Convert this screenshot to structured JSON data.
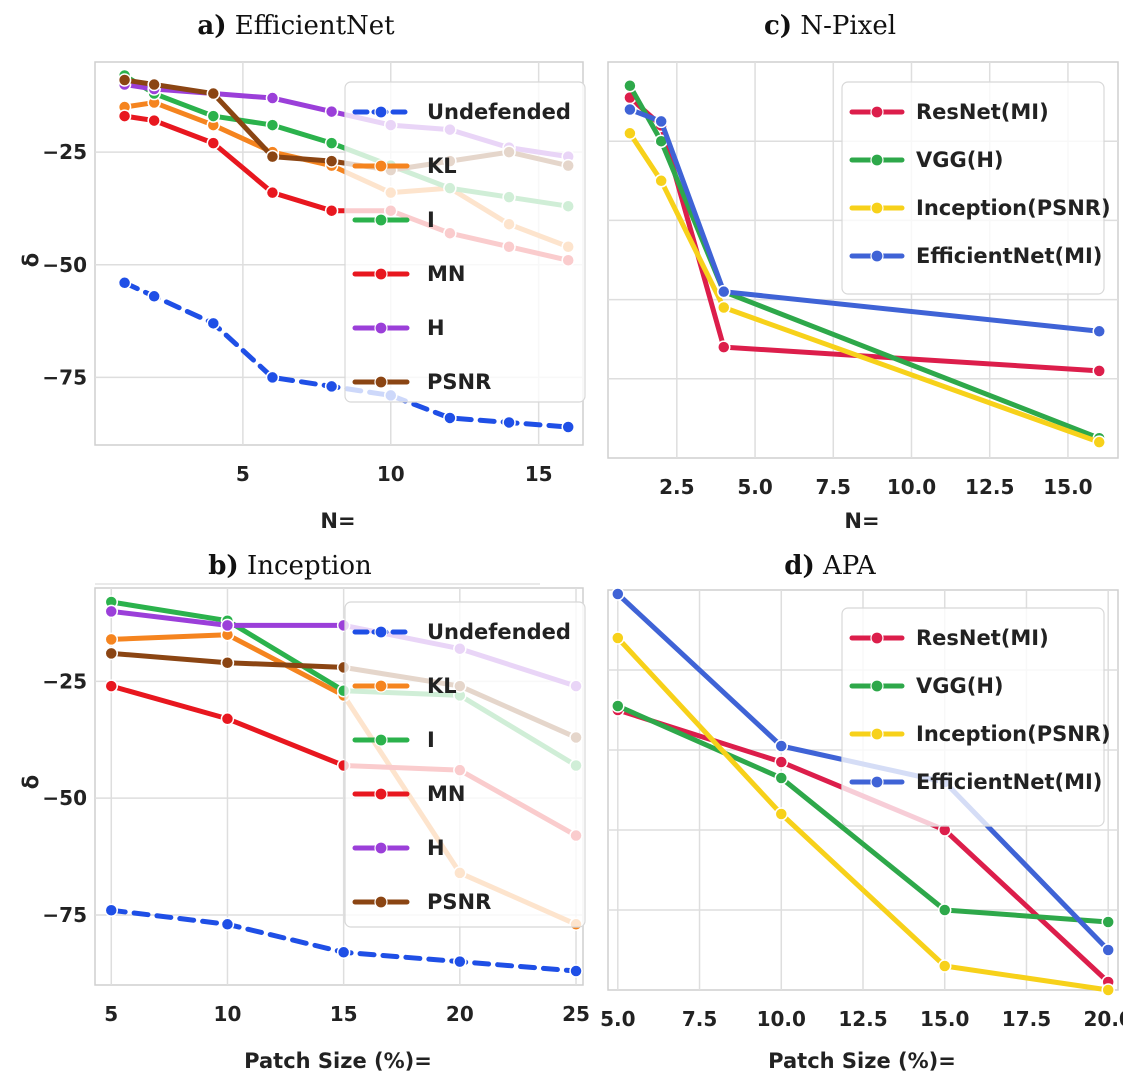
{
  "chart_data": [
    {
      "id": "a",
      "type": "line",
      "title_prefix": "a)",
      "title": "EfficientNet",
      "xlabel": "N=",
      "ylabel": "δ",
      "xlim": [
        0,
        16.5
      ],
      "ylim": [
        -90,
        -5
      ],
      "xticks": [
        5,
        10,
        15
      ],
      "yticks": [
        -25,
        -50,
        -75
      ],
      "grid": true,
      "legend_position": "top-right",
      "series": [
        {
          "name": "Undefended",
          "color": "#1f4fe6",
          "dashed": true,
          "x": [
            1,
            2,
            4,
            6,
            8,
            10,
            12,
            14,
            16
          ],
          "y": [
            -54,
            -57,
            -63,
            -75,
            -77,
            -79,
            -84,
            -85,
            -86
          ]
        },
        {
          "name": "KL",
          "color": "#f5841f",
          "dashed": false,
          "x": [
            1,
            2,
            4,
            6,
            8,
            10,
            12,
            14,
            16
          ],
          "y": [
            -15,
            -14,
            -19,
            -25,
            -28,
            -34,
            -33,
            -41,
            -46
          ]
        },
        {
          "name": "I",
          "color": "#2bb24c",
          "dashed": false,
          "x": [
            1,
            2,
            4,
            6,
            8,
            10,
            12,
            14,
            16
          ],
          "y": [
            -8,
            -12,
            -17,
            -19,
            -23,
            -28,
            -33,
            -35,
            -37
          ]
        },
        {
          "name": "MN",
          "color": "#e8171f",
          "dashed": false,
          "x": [
            1,
            2,
            4,
            6,
            8,
            10,
            12,
            14,
            16
          ],
          "y": [
            -17,
            -18,
            -23,
            -34,
            -38,
            -38,
            -43,
            -46,
            -49
          ]
        },
        {
          "name": "H",
          "color": "#9b3fd9",
          "dashed": false,
          "x": [
            1,
            2,
            4,
            6,
            8,
            10,
            12,
            14,
            16
          ],
          "y": [
            -10,
            -11,
            -12,
            -13,
            -16,
            -19,
            -20,
            -24,
            -26
          ]
        },
        {
          "name": "PSNR",
          "color": "#8b4513",
          "dashed": false,
          "x": [
            1,
            2,
            4,
            6,
            8,
            10,
            12,
            14,
            16
          ],
          "y": [
            -9,
            -10,
            -12,
            -26,
            -27,
            -29,
            -27,
            -25,
            -28
          ]
        }
      ]
    },
    {
      "id": "b",
      "type": "line",
      "title_prefix": "b)",
      "title": "Inception",
      "xlabel": "Patch Size (%)=",
      "ylabel": "δ",
      "xlim": [
        4.3,
        25.3
      ],
      "ylim": [
        -90,
        -5
      ],
      "xticks": [
        5,
        10,
        15,
        20,
        25
      ],
      "yticks": [
        -25,
        -50,
        -75
      ],
      "grid": true,
      "legend_position": "top-right",
      "series": [
        {
          "name": "Undefended",
          "color": "#1f4fe6",
          "dashed": true,
          "x": [
            5,
            10,
            15,
            20,
            25
          ],
          "y": [
            -74,
            -77,
            -83,
            -85,
            -87
          ]
        },
        {
          "name": "KL",
          "color": "#f5841f",
          "dashed": false,
          "x": [
            5,
            10,
            15,
            20,
            25
          ],
          "y": [
            -16,
            -15,
            -28,
            -66,
            -77
          ]
        },
        {
          "name": "I",
          "color": "#2bb24c",
          "dashed": false,
          "x": [
            5,
            10,
            15,
            20,
            25
          ],
          "y": [
            -8,
            -12,
            -27,
            -28,
            -43
          ]
        },
        {
          "name": "MN",
          "color": "#e8171f",
          "dashed": false,
          "x": [
            5,
            10,
            15,
            20,
            25
          ],
          "y": [
            -26,
            -33,
            -43,
            -44,
            -58
          ]
        },
        {
          "name": "H",
          "color": "#9b3fd9",
          "dashed": false,
          "x": [
            5,
            10,
            15,
            20,
            25
          ],
          "y": [
            -10,
            -13,
            -13,
            -18,
            -26
          ]
        },
        {
          "name": "PSNR",
          "color": "#8b4513",
          "dashed": false,
          "x": [
            5,
            10,
            15,
            20,
            25
          ],
          "y": [
            -19,
            -21,
            -22,
            -26,
            -37
          ]
        }
      ]
    },
    {
      "id": "c",
      "type": "line",
      "title_prefix": "c)",
      "title": "N-Pixel",
      "xlabel": "N=",
      "ylabel": "",
      "xlim": [
        0.3,
        16.6
      ],
      "ylim": [
        0,
        100
      ],
      "xticks": [
        2.5,
        5.0,
        7.5,
        10.0,
        12.5,
        15.0
      ],
      "yticks": [],
      "grid": true,
      "legend_position": "top-right",
      "series": [
        {
          "name": "ResNet(MI)",
          "color": "#dc1e4b",
          "dashed": false,
          "x": [
            1,
            2,
            4,
            16
          ],
          "y": [
            91,
            84,
            28,
            22
          ]
        },
        {
          "name": "VGG(H)",
          "color": "#2ea84a",
          "dashed": false,
          "x": [
            1,
            2,
            4,
            16
          ],
          "y": [
            94,
            80,
            42,
            5
          ]
        },
        {
          "name": "Inception(PSNR)",
          "color": "#f7d11a",
          "dashed": false,
          "x": [
            1,
            2,
            4,
            16
          ],
          "y": [
            82,
            70,
            38,
            4
          ]
        },
        {
          "name": "EfficientNet(MI)",
          "color": "#3f63d6",
          "dashed": false,
          "x": [
            1,
            2,
            4,
            16
          ],
          "y": [
            88,
            85,
            42,
            32
          ]
        }
      ]
    },
    {
      "id": "d",
      "type": "line",
      "title_prefix": "d)",
      "title": "APA",
      "xlabel": "Patch Size (%)=",
      "ylabel": "",
      "xlim": [
        4.7,
        20.3
      ],
      "ylim": [
        0,
        100
      ],
      "xticks": [
        5.0,
        7.5,
        10.0,
        12.5,
        15.0,
        17.5,
        20.0
      ],
      "yticks": [],
      "grid": true,
      "legend_position": "top-right",
      "series": [
        {
          "name": "ResNet(MI)",
          "color": "#dc1e4b",
          "dashed": false,
          "x": [
            5,
            10,
            15,
            20
          ],
          "y": [
            70,
            57,
            40,
            2
          ]
        },
        {
          "name": "VGG(H)",
          "color": "#2ea84a",
          "dashed": false,
          "x": [
            5,
            10,
            15,
            20
          ],
          "y": [
            71,
            53,
            20,
            17
          ]
        },
        {
          "name": "Inception(PSNR)",
          "color": "#f7d11a",
          "dashed": false,
          "x": [
            5,
            10,
            15,
            20
          ],
          "y": [
            88,
            44,
            6,
            0
          ]
        },
        {
          "name": "EfficientNet(MI)",
          "color": "#3f63d6",
          "dashed": false,
          "x": [
            5,
            10,
            15,
            20
          ],
          "y": [
            99,
            61,
            52,
            10
          ]
        }
      ]
    }
  ]
}
